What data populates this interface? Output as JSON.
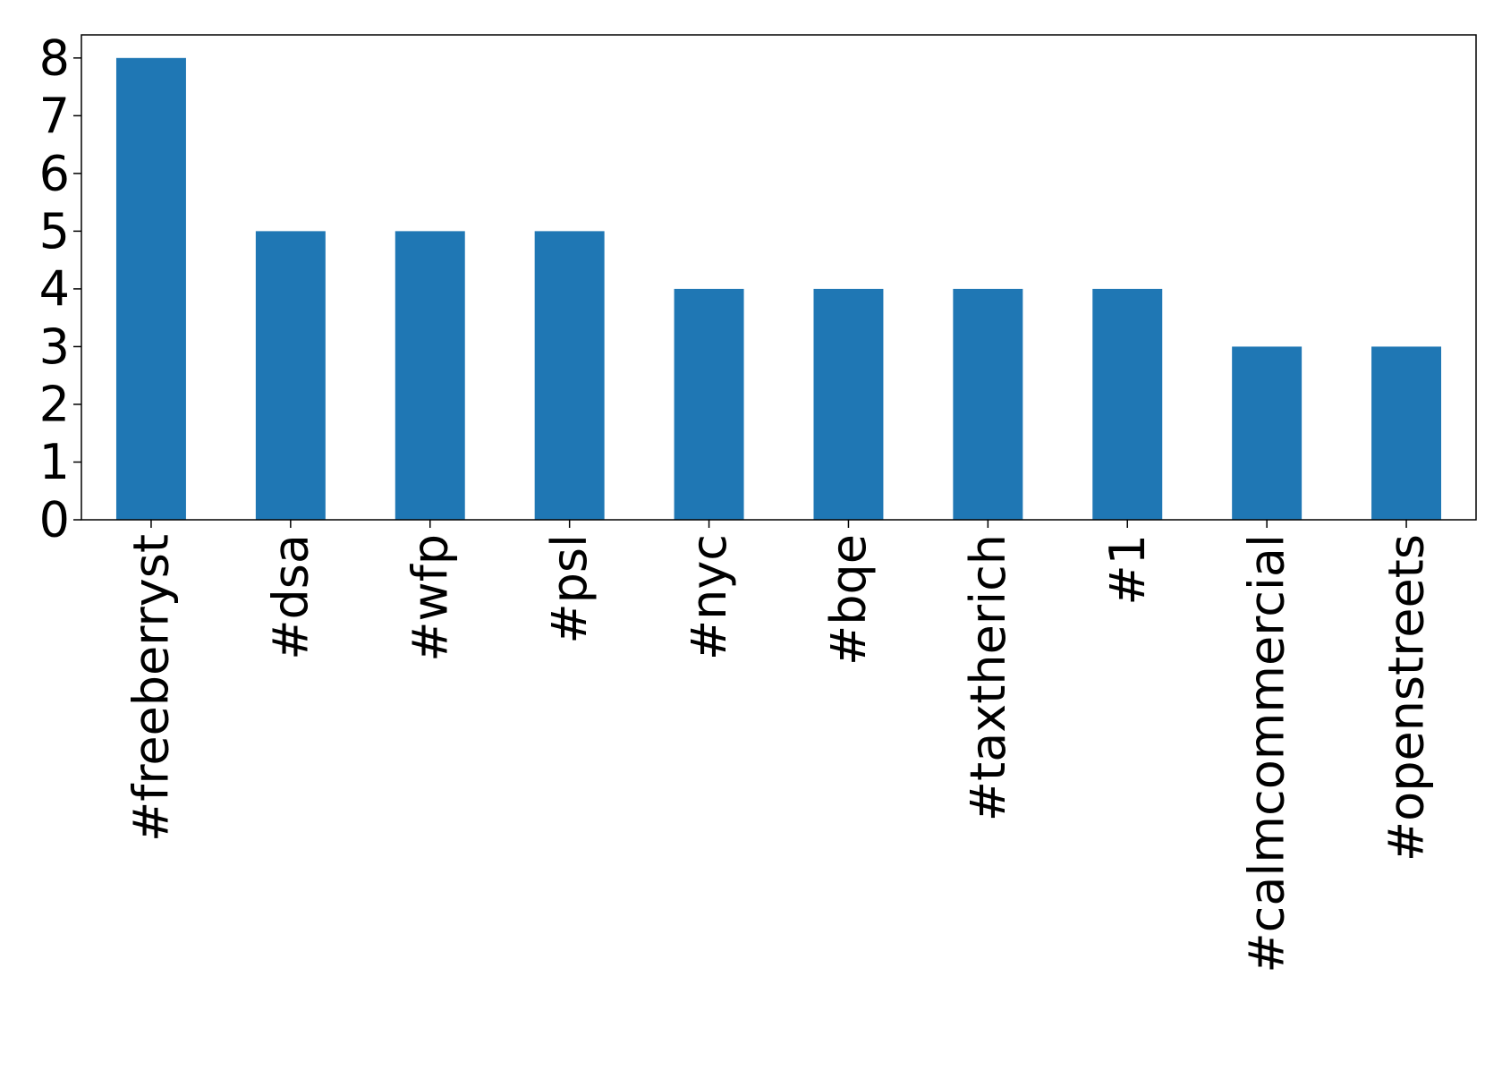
{
  "chart_data": {
    "type": "bar",
    "categories": [
      "#freeberryst",
      "#dsa",
      "#wfp",
      "#psl",
      "#nyc",
      "#bqe",
      "#taxtherich",
      "#1",
      "#calmcommercial",
      "#openstreets"
    ],
    "values": [
      8,
      5,
      5,
      5,
      4,
      4,
      4,
      4,
      3,
      3
    ],
    "yticks": [
      "0",
      "1",
      "2",
      "3",
      "4",
      "5",
      "6",
      "7",
      "8"
    ],
    "ylim": [
      0,
      8.4
    ],
    "title": "",
    "xlabel": "",
    "ylabel": "",
    "bar_color": "#1f77b4",
    "grid": false,
    "legend": "none"
  }
}
